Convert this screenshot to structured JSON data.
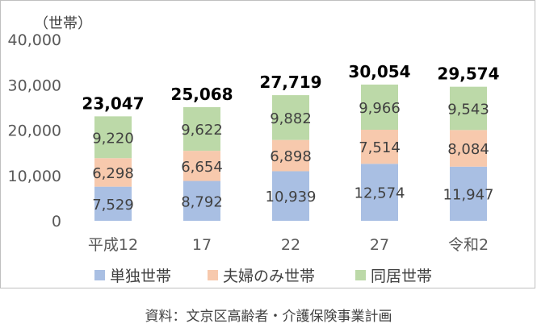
{
  "chart_data": {
    "type": "bar",
    "stacked": true,
    "unit": "（世帯）",
    "categories": [
      "平成12",
      "17",
      "22",
      "27",
      "令和2"
    ],
    "series": [
      {
        "name": "単独世帯",
        "values": [
          7529,
          8792,
          10939,
          12574,
          11947
        ],
        "color": "#a9bfe3"
      },
      {
        "name": "夫婦のみ世帯",
        "values": [
          6298,
          6654,
          6898,
          7514,
          8084
        ],
        "color": "#f7c9ad"
      },
      {
        "name": "同居世帯",
        "values": [
          9220,
          9622,
          9882,
          9966,
          9543
        ],
        "color": "#bcd9a8"
      }
    ],
    "value_labels": [
      [
        "7,529",
        "8,792",
        "10,939",
        "12,574",
        "11,947"
      ],
      [
        "6,298",
        "6,654",
        "6,898",
        "7,514",
        "8,084"
      ],
      [
        "9,220",
        "9,622",
        "9,882",
        "9,966",
        "9,543"
      ]
    ],
    "totals": [
      23047,
      25068,
      27719,
      30054,
      29574
    ],
    "total_labels": [
      "23,047",
      "25,068",
      "27,719",
      "30,054",
      "29,574"
    ],
    "y_ticks": [
      "0",
      "10,000",
      "20,000",
      "30,000",
      "40,000"
    ],
    "ylim": [
      0,
      40000
    ],
    "grid": false,
    "legend_position": "bottom"
  },
  "source": "資料：文京区高齢者・介護保険事業計画"
}
